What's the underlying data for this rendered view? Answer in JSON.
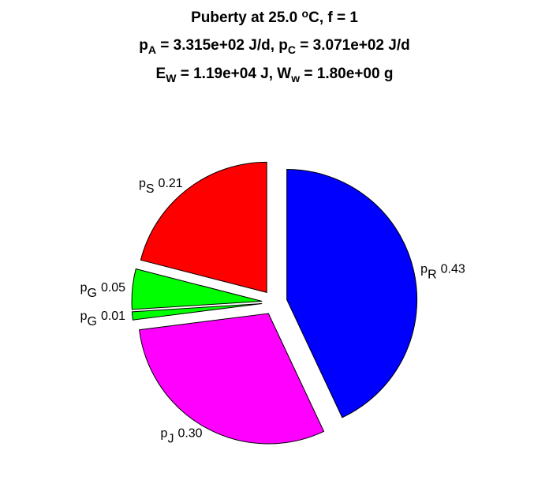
{
  "chart_data": {
    "type": "pie",
    "title_lines": [
      [
        {
          "t": "Puberty at 25.0 "
        },
        {
          "t": "o",
          "pos": "sup"
        },
        {
          "t": "C, f = 1"
        }
      ],
      [
        {
          "t": "p"
        },
        {
          "t": "A",
          "pos": "sub"
        },
        {
          "t": " = 3.315e+02 J/d,  p"
        },
        {
          "t": "C",
          "pos": "sub"
        },
        {
          "t": " = 3.071e+02 J/d"
        }
      ],
      [
        {
          "t": "E"
        },
        {
          "t": "W",
          "pos": "sub"
        },
        {
          "t": " = 1.19e+04 J, W"
        },
        {
          "t": "w",
          "pos": "sub"
        },
        {
          "t": " = 1.80e+00 g"
        }
      ]
    ],
    "labels": [
      {
        "base": "p",
        "sub": "R"
      },
      {
        "base": "p",
        "sub": "J"
      },
      {
        "base": "p",
        "sub": "G"
      },
      {
        "base": "p",
        "sub": "G"
      },
      {
        "base": "p",
        "sub": "S"
      }
    ],
    "values": [
      0.43,
      0.3,
      0.01,
      0.05,
      0.21
    ],
    "value_labels": [
      "0.43",
      "0.30",
      "0.01",
      "0.05",
      "0.21"
    ],
    "colors": [
      "#0000ff",
      "#ff00ff",
      "#00ff00",
      "#00ff00",
      "#ff0000"
    ],
    "explode": true
  }
}
